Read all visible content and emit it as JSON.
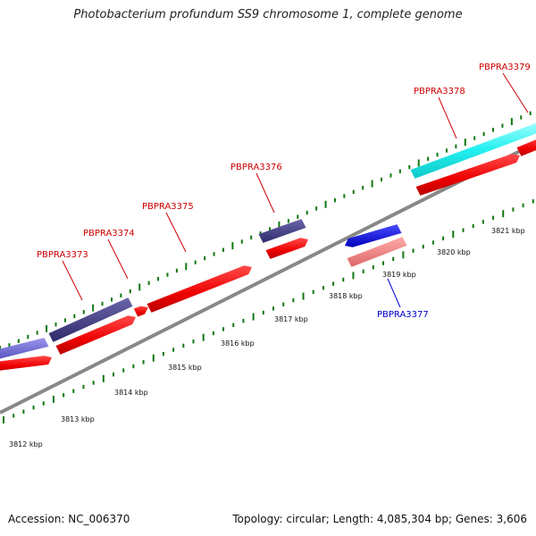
{
  "title": "Photobacterium profundum SS9 chromosome 1, complete genome",
  "accession": "Accession: NC_006370",
  "topology": "Topology: circular; Length: 4,085,304 bp; Genes: 3,606",
  "colors": {
    "forward_label": "#cc0000",
    "reverse_label": "#0000cc",
    "tick": "#117711",
    "backbone": "#888888"
  },
  "kbp_labels": [
    "3812 kbp",
    "3813 kbp",
    "3814 kbp",
    "3815 kbp",
    "3816 kbp",
    "3817 kbp",
    "3818 kbp",
    "3819 kbp",
    "3820 kbp",
    "3821 kbp"
  ],
  "gene_labels": [
    {
      "text": "PBPRA3373",
      "strand": "forward"
    },
    {
      "text": "PBPRA3374",
      "strand": "forward"
    },
    {
      "text": "PBPRA3375",
      "strand": "forward"
    },
    {
      "text": "PBPRA3376",
      "strand": "forward"
    },
    {
      "text": "PBPRA3377",
      "strand": "reverse"
    },
    {
      "text": "PBPRA3378",
      "strand": "forward"
    },
    {
      "text": "PBPRA3379",
      "strand": "forward"
    }
  ]
}
